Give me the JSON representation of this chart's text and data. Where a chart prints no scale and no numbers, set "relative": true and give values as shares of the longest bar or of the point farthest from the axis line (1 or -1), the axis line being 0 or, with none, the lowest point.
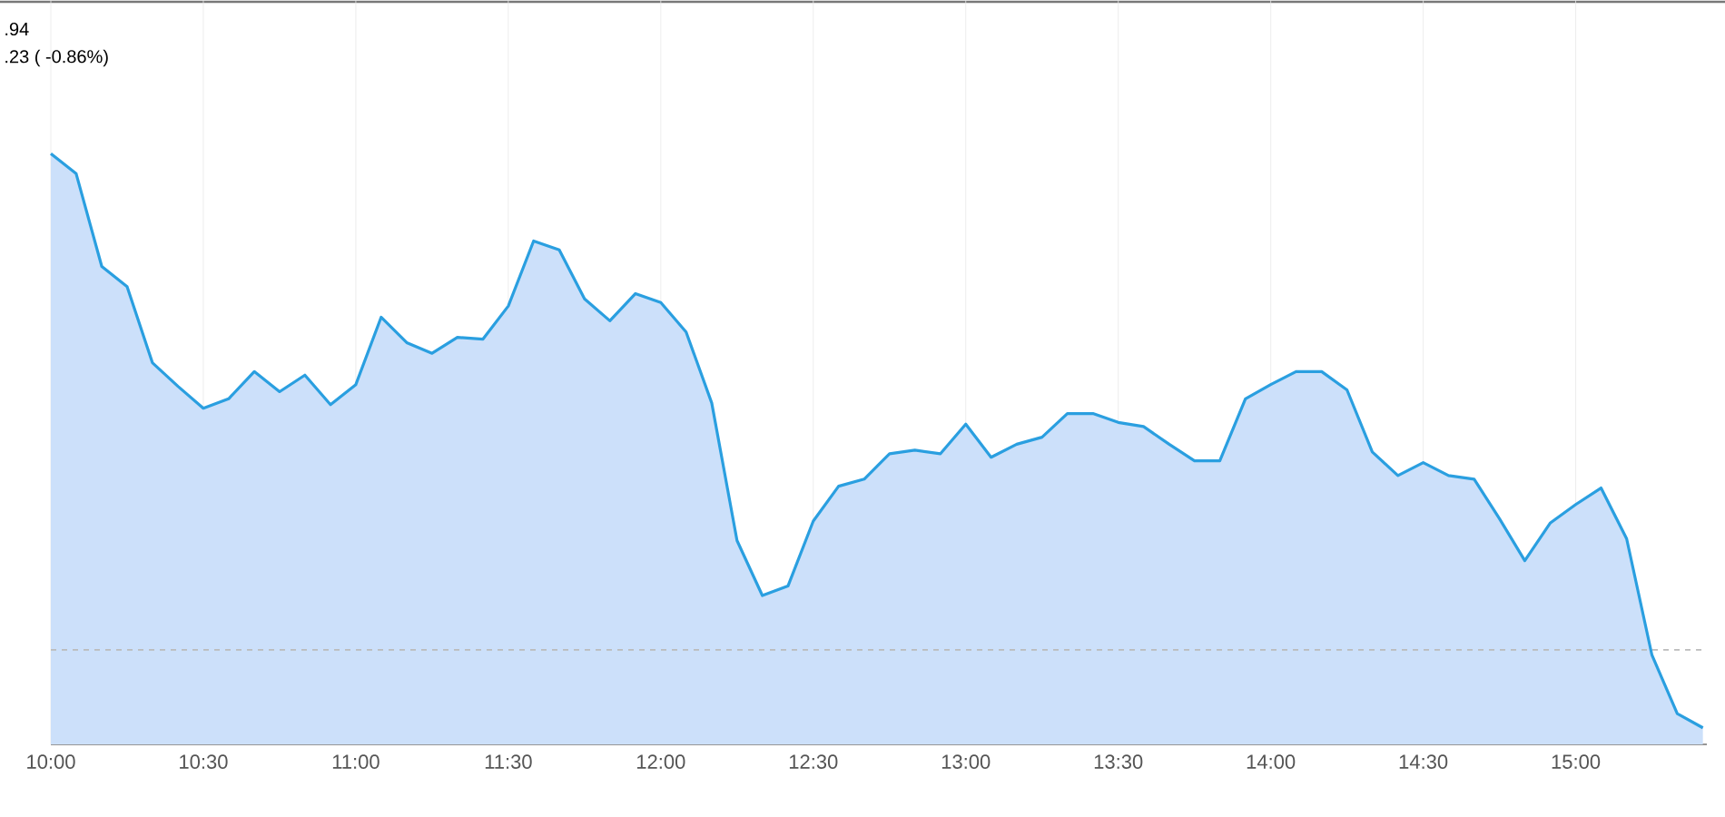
{
  "chart_data": {
    "type": "area",
    "relative": true,
    "color": "#2a9fe0",
    "x": [
      10,
      10.083,
      10.167,
      10.25,
      10.333,
      10.417,
      10.5,
      10.583,
      10.667,
      10.75,
      10.833,
      10.917,
      11,
      11.083,
      11.167,
      11.25,
      11.333,
      11.417,
      11.5,
      11.583,
      11.667,
      11.75,
      11.833,
      11.917,
      12,
      12.083,
      12.167,
      12.25,
      12.333,
      12.417,
      12.5,
      12.583,
      12.667,
      12.75,
      12.833,
      12.917,
      13,
      13.083,
      13.167,
      13.25,
      13.333,
      13.417,
      13.5,
      13.583,
      13.667,
      13.75,
      13.833,
      13.917,
      14,
      14.083,
      14.167,
      14.25,
      14.333,
      14.417,
      14.5,
      14.583,
      14.667,
      14.75,
      14.833,
      14.917,
      15,
      15.083,
      15.167,
      15.25,
      15.333,
      15.417
    ],
    "values": [
      1.0,
      0.966,
      0.809,
      0.775,
      0.646,
      0.606,
      0.569,
      0.585,
      0.631,
      0.597,
      0.625,
      0.575,
      0.609,
      0.723,
      0.68,
      0.662,
      0.689,
      0.686,
      0.742,
      0.852,
      0.837,
      0.754,
      0.717,
      0.763,
      0.748,
      0.698,
      0.578,
      0.345,
      0.252,
      0.268,
      0.378,
      0.437,
      0.449,
      0.492,
      0.498,
      0.492,
      0.542,
      0.486,
      0.508,
      0.52,
      0.56,
      0.56,
      0.545,
      0.538,
      0.508,
      0.48,
      0.48,
      0.585,
      0.609,
      0.631,
      0.631,
      0.6,
      0.495,
      0.455,
      0.477,
      0.455,
      0.449,
      0.382,
      0.311,
      0.375,
      0.406,
      0.434,
      0.348,
      0.151,
      0.052,
      0.028
    ],
    "xlim": [
      10,
      15.43
    ],
    "xticks": [
      {
        "value": 10,
        "label": "10:00"
      },
      {
        "value": 10.5,
        "label": "10:30"
      },
      {
        "value": 11,
        "label": "11:00"
      },
      {
        "value": 11.5,
        "label": "11:30"
      },
      {
        "value": 12,
        "label": "12:00"
      },
      {
        "value": 12.5,
        "label": "12:30"
      },
      {
        "value": 13,
        "label": "13:00"
      },
      {
        "value": 13.5,
        "label": "13:30"
      },
      {
        "value": 14,
        "label": "14:00"
      },
      {
        "value": 14.5,
        "label": "14:30"
      },
      {
        "value": 15,
        "label": "15:00"
      }
    ],
    "grid": "x",
    "marker": "none",
    "line_style": "solid",
    "ref_lines": [
      {
        "axis": "y",
        "value": 0.16,
        "color": "#bbbbbb",
        "line_style": "dashed"
      }
    ],
    "annotations": [
      ".94",
      ".23 ( -0.86%)"
    ]
  }
}
